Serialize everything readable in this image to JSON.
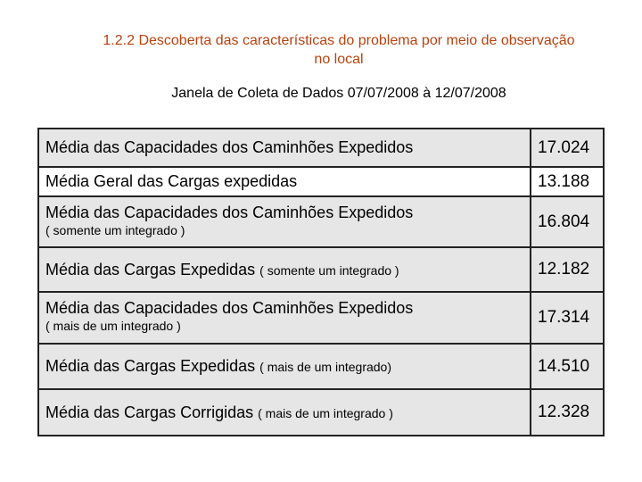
{
  "title": {
    "line1": "1.2.2 Descoberta das características do problema por meio de observação",
    "line2": "no local"
  },
  "subtitle": "Janela de Coleta de Dados  07/07/2008 à 12/07/2008",
  "rows": [
    {
      "label": "Média das Capacidades dos Caminhões Expedidos",
      "note": "",
      "value": "17.024"
    },
    {
      "label": "Média Geral das Cargas expedidas",
      "note": "",
      "value": "13.188"
    },
    {
      "label": "Média das Capacidades dos Caminhões Expedidos",
      "note": "( somente um integrado )",
      "value": "16.804"
    },
    {
      "label": "Média das Cargas Expedidas",
      "note": "( somente um integrado )",
      "value": "12.182"
    },
    {
      "label": "Média das Capacidades dos Caminhões Expedidos",
      "note": "(  mais de um integrado )",
      "value": "17.314"
    },
    {
      "label": "Média das Cargas Expedidas",
      "note": "( mais de um integrado)",
      "value": "14.510"
    },
    {
      "label": "Média das Cargas Corrigidas",
      "note": "( mais de um integrado )",
      "value": "12.328"
    }
  ]
}
